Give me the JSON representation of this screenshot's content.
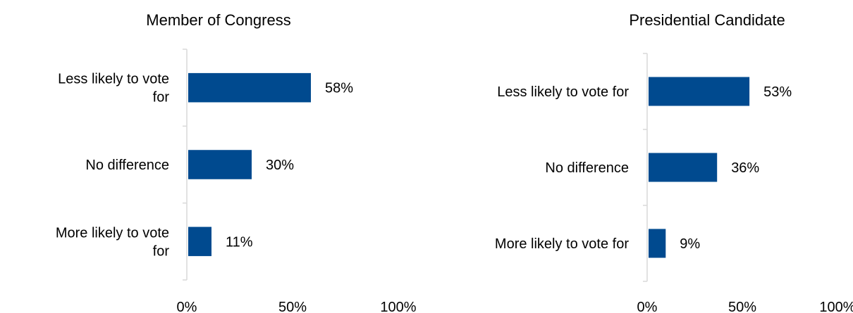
{
  "chart_data": [
    {
      "type": "bar",
      "orientation": "horizontal",
      "title": "Member of Congress",
      "categories": [
        "Less likely to vote for",
        "No difference",
        "More likely to vote for"
      ],
      "values": [
        58,
        30,
        11
      ],
      "value_labels": [
        "58%",
        "30%",
        "11%"
      ],
      "xlim": [
        0,
        100
      ],
      "xticks": [
        "0%",
        "50%",
        "100%"
      ],
      "xlabel": "",
      "ylabel": "",
      "grid": false,
      "legend": "none",
      "bar_color": "#004A8F"
    },
    {
      "type": "bar",
      "orientation": "horizontal",
      "title": "Presidential Candidate",
      "categories": [
        "Less likely to vote for",
        "No difference",
        "More likely to vote for"
      ],
      "values": [
        53,
        36,
        9
      ],
      "value_labels": [
        "53%",
        "36%",
        "9%"
      ],
      "xlim": [
        0,
        100
      ],
      "xticks": [
        "0%",
        "50%",
        "100%"
      ],
      "xlabel": "",
      "ylabel": "",
      "grid": false,
      "legend": "none",
      "bar_color": "#004A8F"
    }
  ]
}
